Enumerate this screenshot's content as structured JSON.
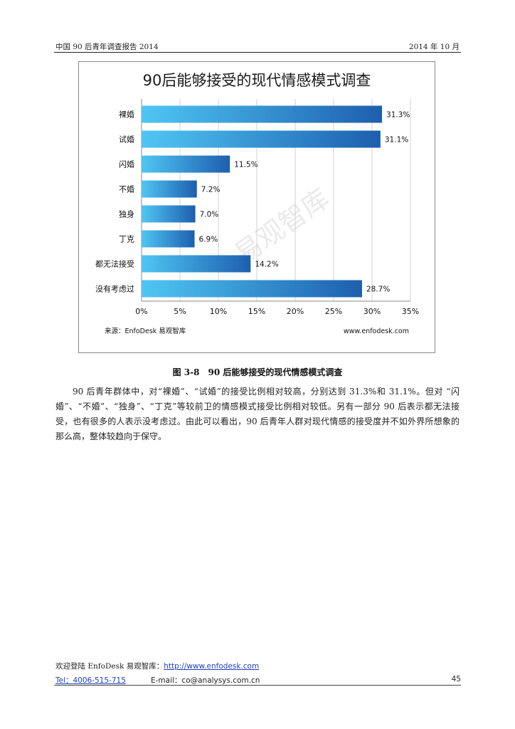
{
  "header": {
    "left": "中国 90 后青年调查报告 2014",
    "right": "2014 年 10 月"
  },
  "chart_data": {
    "type": "bar",
    "orientation": "horizontal",
    "title": "90后能够接受的现代情感模式调查",
    "categories": [
      "裸婚",
      "试婚",
      "闪婚",
      "不婚",
      "独身",
      "丁克",
      "都无法接受",
      "没有考虑过"
    ],
    "values": [
      31.3,
      31.1,
      11.5,
      7.2,
      7.0,
      6.9,
      14.2,
      28.7
    ],
    "value_labels": [
      "31.3%",
      "31.1%",
      "11.5%",
      "7.2%",
      "7.0%",
      "6.9%",
      "14.2%",
      "28.7%"
    ],
    "xlim": [
      0,
      35
    ],
    "xticks": [
      "0%",
      "5%",
      "10%",
      "15%",
      "20%",
      "25%",
      "30%",
      "35%"
    ],
    "grid": true,
    "legend": "none",
    "bar_color_light": "#4fc6f4",
    "bar_color_dark": "#1d5fae",
    "source_left": "来源：EnfoDesk 易观智库",
    "source_right": "www.enfodesk.com",
    "watermark": "易观智库"
  },
  "caption": "图 3-8　90 后能够接受的现代情感模式调查",
  "body_paragraph": "90 后青年群体中，对“裸婚”、“试婚”的接受比例相对较高，分别达到 31.3%和 31.1%。但对 “闪婚”、“不婚”、“独身”、“丁克”等较前卫的情感模式接受比例相对较低。另有一部分 90 后表示都无法接受，也有很多的人表示没考虑过。由此可以看出，90 后青年人群对现代情感的接受度并不如外界所想象的那么高，整体较趋向于保守。",
  "footer": {
    "welcome": "欢迎登陆 EnfoDesk 易观智库：",
    "url": "http://www.enfodesk.com",
    "tel": "Tel：4006-515-715",
    "email": "E-mail：co@analysys.com.cn",
    "page": "45"
  }
}
